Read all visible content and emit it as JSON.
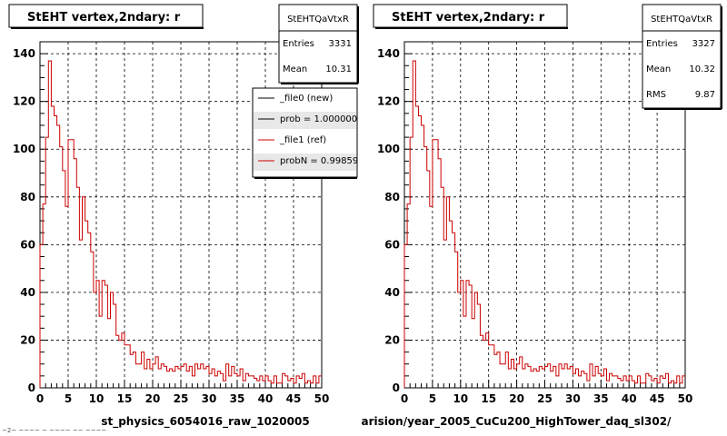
{
  "chart_data": [
    {
      "type": "line",
      "title": "StEHT  vertex,2ndary: r",
      "footer": "st_physics_6054016_raw_1020005",
      "xlim": [
        0,
        50
      ],
      "ylim": [
        0,
        145
      ],
      "x_ticks": [
        "0",
        "5",
        "10",
        "15",
        "20",
        "25",
        "30",
        "35",
        "40",
        "45",
        "50"
      ],
      "y_ticks": [
        "0",
        "20",
        "40",
        "60",
        "80",
        "100",
        "120",
        "140"
      ],
      "grid": true,
      "stats": {
        "name": "StEHTQaVtxR",
        "rows": [
          {
            "label": "Entries",
            "value": "3331"
          },
          {
            "label": "Mean",
            "value": "10.31"
          }
        ]
      },
      "legend": {
        "placement": "top-right",
        "entries": [
          {
            "text": "_file0 (new)",
            "color": "#000000"
          },
          {
            "text": "prob = 1.000000",
            "color": "#000000"
          },
          {
            "text": "_file1 (ref)",
            "color": "#cc0000"
          },
          {
            "text": "probN = 0.998593",
            "color": "#cc0000"
          }
        ]
      },
      "series": [
        {
          "color": "#cc0000",
          "bin_width": 0.5,
          "values": [
            60,
            77,
            105,
            137,
            118,
            114,
            110,
            101,
            91,
            76,
            104,
            104,
            96,
            84,
            62,
            80,
            70,
            65,
            57,
            40,
            45,
            30,
            45,
            43,
            29,
            40,
            35,
            22,
            20,
            23,
            18,
            18,
            14,
            15,
            10,
            10,
            15,
            8,
            12,
            8,
            10,
            13,
            8,
            10,
            9,
            7,
            8,
            7,
            9,
            8,
            9,
            10,
            7,
            9,
            5,
            10,
            8,
            10,
            8,
            9,
            6,
            8,
            5,
            7,
            6,
            3,
            10,
            5,
            9,
            6,
            5,
            8,
            3,
            6,
            5,
            5,
            4,
            3,
            5,
            3,
            5,
            3,
            2,
            5,
            2,
            2,
            6,
            5,
            3,
            4,
            2,
            5,
            4,
            6,
            2,
            3,
            2,
            5,
            2,
            5
          ]
        }
      ]
    },
    {
      "type": "line",
      "title": "StEHT  vertex,2ndary: r",
      "footer": "arision/year_2005_CuCu200_HighTower_daq_sl302/",
      "xlim": [
        0,
        50
      ],
      "ylim": [
        0,
        145
      ],
      "x_ticks": [
        "0",
        "5",
        "10",
        "15",
        "20",
        "25",
        "30",
        "35",
        "40",
        "45",
        "50"
      ],
      "y_ticks": [
        "0",
        "20",
        "40",
        "60",
        "80",
        "100",
        "120",
        "140"
      ],
      "grid": true,
      "stats": {
        "name": "StEHTQaVtxR",
        "rows": [
          {
            "label": "Entries",
            "value": "3327"
          },
          {
            "label": "Mean",
            "value": "10.32"
          },
          {
            "label": "RMS",
            "value": "9.87"
          }
        ]
      },
      "series": [
        {
          "color": "#cc0000",
          "bin_width": 0.5,
          "values": [
            60,
            77,
            105,
            137,
            118,
            114,
            110,
            101,
            91,
            76,
            104,
            104,
            96,
            84,
            62,
            80,
            70,
            65,
            57,
            40,
            45,
            30,
            45,
            43,
            29,
            40,
            35,
            22,
            20,
            23,
            18,
            18,
            14,
            15,
            10,
            10,
            15,
            8,
            12,
            8,
            10,
            13,
            8,
            10,
            9,
            7,
            8,
            7,
            9,
            8,
            9,
            10,
            7,
            9,
            5,
            10,
            8,
            10,
            8,
            9,
            6,
            8,
            5,
            7,
            6,
            3,
            10,
            5,
            9,
            6,
            5,
            8,
            3,
            6,
            5,
            5,
            4,
            3,
            5,
            3,
            5,
            3,
            2,
            5,
            2,
            2,
            6,
            5,
            3,
            4,
            2,
            5,
            4,
            6,
            2,
            3,
            2,
            5,
            2,
            5
          ]
        }
      ]
    }
  ],
  "page": {
    "corner_note": "~2~ ~~~~ ~ ~~~~ ~~ ~~~~"
  }
}
